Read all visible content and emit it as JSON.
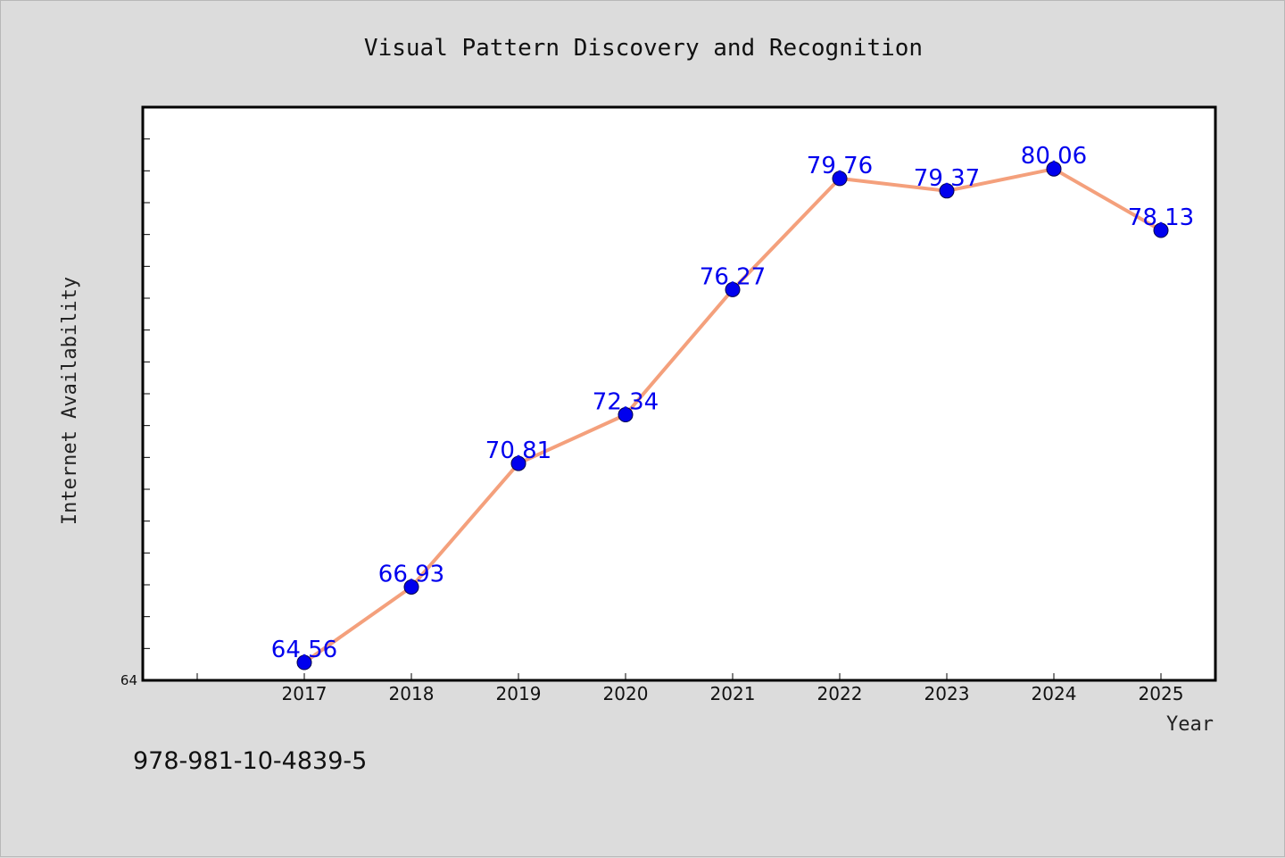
{
  "chart_data": {
    "type": "line",
    "title": "Visual Pattern Discovery and Recognition",
    "xlabel": "Year",
    "ylabel": "Internet Availability",
    "categories": [
      "2017",
      "2018",
      "2019",
      "2020",
      "2021",
      "2022",
      "2023",
      "2024",
      "2025"
    ],
    "series": [
      {
        "values": [
          64.56,
          66.93,
          70.81,
          72.34,
          76.27,
          79.76,
          79.37,
          80.06,
          78.13
        ],
        "line_color": "#f4a07c",
        "marker_color": "#0000ee"
      }
    ],
    "ylim": [
      64,
      82
    ],
    "y_tick_labels": [
      "64"
    ],
    "y_minor_tick_step": 1,
    "data_labels": [
      "64.56",
      "66.93",
      "70.81",
      "72.34",
      "76.27",
      "79.76",
      "79.37",
      "80.06",
      "78.13"
    ],
    "data_label_color": "#0000ee",
    "grid": false,
    "legend": "none",
    "background": "#dcdcdc",
    "plot_background": "#ffffff"
  },
  "footer": {
    "code": "978-981-10-4839-5"
  }
}
